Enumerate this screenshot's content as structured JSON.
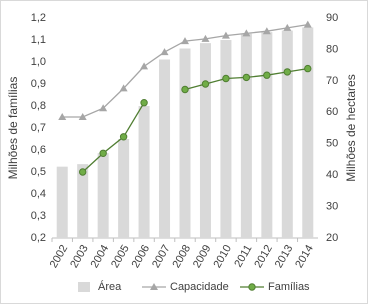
{
  "chart_data": {
    "type": "bar-line",
    "y_label": "Milhões de famílias",
    "y2_label": "Milhões de hectares",
    "categories": [
      "2002",
      "2003",
      "2004",
      "2005",
      "2006",
      "2007",
      "2008",
      "2009",
      "2010",
      "2011",
      "2012",
      "2013",
      "2014"
    ],
    "series": [
      {
        "name": "Área",
        "type": "bar",
        "axis": "y2",
        "color": "#d9d9d9",
        "values": [
          42.7,
          43.5,
          47,
          51.5,
          62,
          76.8,
          80.3,
          82,
          83,
          85,
          85.5,
          86,
          87
        ]
      },
      {
        "name": "Capacidade",
        "type": "line",
        "marker": "triangle",
        "color": "#a6a6a6",
        "values": [
          0.75,
          0.75,
          0.79,
          0.88,
          0.98,
          1.045,
          1.095,
          1.105,
          1.12,
          1.13,
          1.14,
          1.155,
          1.17
        ]
      },
      {
        "name": "Famílias",
        "type": "line",
        "marker": "circle",
        "color": "#507e32",
        "values": [
          null,
          0.5,
          0.585,
          0.66,
          0.815,
          null,
          0.875,
          0.9,
          0.925,
          0.93,
          0.94,
          0.955,
          0.97
        ]
      }
    ],
    "ylim": [
      0.2,
      1.2
    ],
    "yticks": [
      {
        "value": 0.2,
        "label": "0,2"
      },
      {
        "value": 0.3,
        "label": "0,3"
      },
      {
        "value": 0.4,
        "label": "0,4"
      },
      {
        "value": 0.5,
        "label": "0,5"
      },
      {
        "value": 0.6,
        "label": "0,6"
      },
      {
        "value": 0.7,
        "label": "0,7"
      },
      {
        "value": 0.8,
        "label": "0,8"
      },
      {
        "value": 0.9,
        "label": "0,9"
      },
      {
        "value": 1.0,
        "label": "1,0"
      },
      {
        "value": 1.1,
        "label": "1,1"
      },
      {
        "value": 1.2,
        "label": "1,2"
      }
    ],
    "y2lim": [
      20,
      90
    ],
    "y2ticks": [
      20,
      30,
      40,
      50,
      60,
      70,
      80,
      90
    ],
    "legend": "bottom"
  }
}
